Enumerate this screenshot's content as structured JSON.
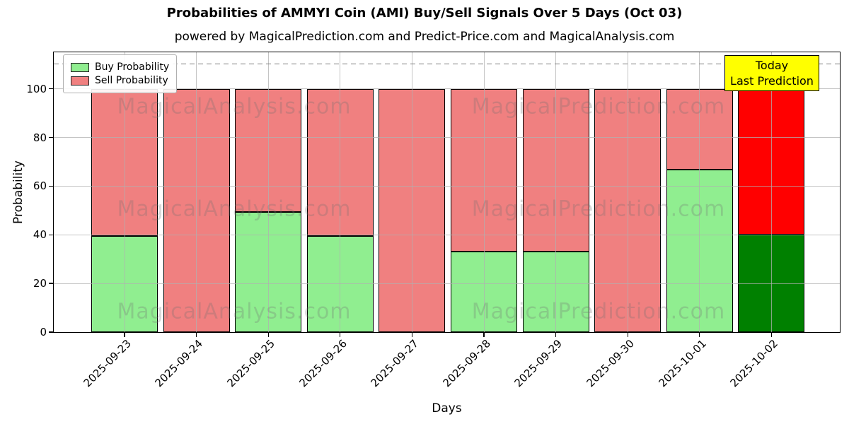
{
  "header": {
    "title": "Probabilities of AMMYI Coin (AMI) Buy/Sell Signals Over 5 Days (Oct 03)",
    "subtitle": "powered by MagicalPrediction.com and Predict-Price.com and MagicalAnalysis.com"
  },
  "axes": {
    "ylabel": "Probability",
    "xlabel": "Days"
  },
  "legend": {
    "items": [
      {
        "label": "Buy Probability",
        "color": "#90ee90"
      },
      {
        "label": "Sell Probability",
        "color": "#f08080"
      }
    ]
  },
  "annotation": {
    "lines": [
      "Today",
      "Last Prediction"
    ],
    "bg": "#ffff00"
  },
  "watermarks": {
    "left": "MagicalAnalysis.com",
    "right": "MagicalPrediction.com"
  },
  "chart_data": {
    "type": "bar",
    "stacked": true,
    "title": "Probabilities of AMMYI Coin (AMI) Buy/Sell Signals Over 5 Days (Oct 03)",
    "xlabel": "Days",
    "ylabel": "Probability",
    "ylim": [
      0,
      115
    ],
    "yticks": [
      0,
      20,
      40,
      60,
      80,
      100
    ],
    "dashed_line_y": 110,
    "grid": true,
    "legend_position": "upper left",
    "categories": [
      "2025-09-23",
      "2025-09-24",
      "2025-09-25",
      "2025-09-26",
      "2025-09-27",
      "2025-09-28",
      "2025-09-29",
      "2025-09-30",
      "2025-10-01",
      "2025-10-02"
    ],
    "series": [
      {
        "name": "Buy Probability",
        "values": [
          39.6,
          0,
          49.5,
          39.6,
          0,
          33.0,
          33.0,
          0,
          66.7,
          40.0
        ]
      },
      {
        "name": "Sell Probability",
        "values": [
          60.4,
          100,
          50.5,
          60.4,
          100,
          67.0,
          67.0,
          100,
          33.3,
          60.0
        ]
      }
    ],
    "today_index": 9,
    "colors": {
      "buy": "#90ee90",
      "sell": "#f08080",
      "today_buy": "#008000",
      "today_sell": "#ff0000",
      "edge": "#000000"
    }
  }
}
